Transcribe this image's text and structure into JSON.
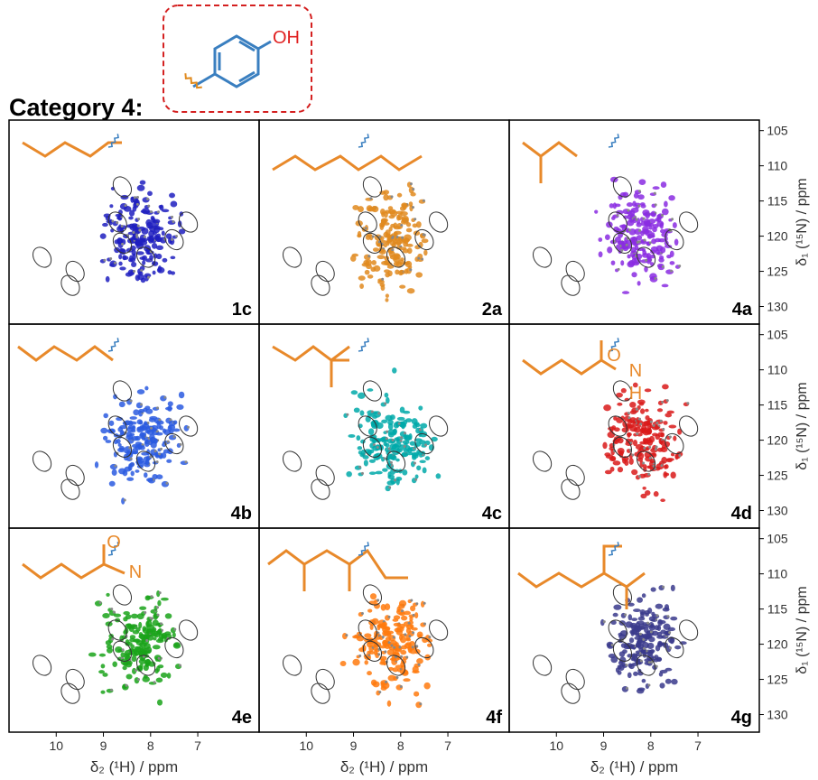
{
  "header": {
    "title": "Category 4:",
    "substituent": "OH"
  },
  "axes": {
    "xlabel": "δ₂ (¹H) / ppm",
    "ylabel": "δ₁ (¹⁵N) / ppm",
    "xlim": [
      11,
      5.7
    ],
    "ylim": [
      103.5,
      132.5
    ],
    "xticks": [
      10,
      9,
      8,
      7
    ],
    "yticks": [
      105,
      110,
      115,
      120,
      125,
      130
    ]
  },
  "panels": [
    {
      "label": "1c",
      "color": "#1f1fbf"
    },
    {
      "label": "2a",
      "color": "#e08a1e"
    },
    {
      "label": "4a",
      "color": "#8a2be2"
    },
    {
      "label": "4b",
      "color": "#2a5ae0"
    },
    {
      "label": "4c",
      "color": "#00a9a9"
    },
    {
      "label": "4d",
      "color": "#d91a1a",
      "atoms": [
        "O",
        "N",
        "H"
      ]
    },
    {
      "label": "4e",
      "color": "#1aa31a",
      "atoms": [
        "O",
        "N"
      ]
    },
    {
      "label": "4f",
      "color": "#ff7a0e"
    },
    {
      "label": "4g",
      "color": "#3a3a8c"
    }
  ]
}
